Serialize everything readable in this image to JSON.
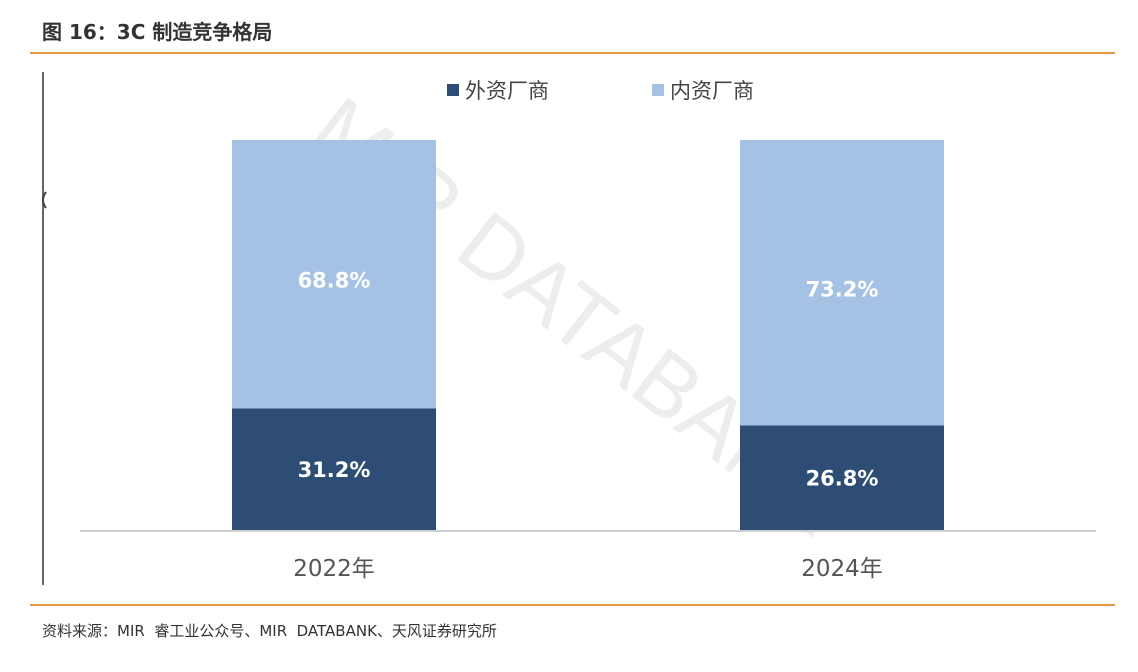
{
  "figure": {
    "title": "图 16：3C 制造竞争格局",
    "source": "资料来源：MIR  睿工业公众号、MIR  DATABANK、天风证券研究所"
  },
  "watermark": "MIR DATABANK",
  "colors": {
    "rule": "#e6963c",
    "foreign": "#2e4d74",
    "domestic": "#a5c2e4",
    "label": "#ffffff"
  },
  "chart_data": {
    "type": "bar",
    "stacked": true,
    "categories": [
      "2022年",
      "2024年"
    ],
    "series": [
      {
        "name": "外资厂商",
        "values": [
          31.2,
          26.8
        ],
        "labels": [
          "31.2%",
          "26.8%"
        ]
      },
      {
        "name": "内资厂商",
        "values": [
          68.8,
          73.2
        ],
        "labels": [
          "68.8%",
          "73.2%"
        ]
      }
    ],
    "ylim": [
      0,
      100
    ],
    "grid": false,
    "legend": "top-center"
  }
}
